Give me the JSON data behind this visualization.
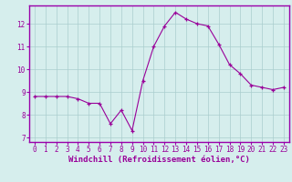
{
  "x": [
    0,
    1,
    2,
    3,
    4,
    5,
    6,
    7,
    8,
    9,
    10,
    11,
    12,
    13,
    14,
    15,
    16,
    17,
    18,
    19,
    20,
    21,
    22,
    23
  ],
  "y": [
    8.8,
    8.8,
    8.8,
    8.8,
    8.7,
    8.5,
    8.5,
    7.6,
    8.2,
    7.3,
    9.5,
    11.0,
    11.9,
    12.5,
    12.2,
    12.0,
    11.9,
    11.1,
    10.2,
    9.8,
    9.3,
    9.2,
    9.1,
    9.2
  ],
  "line_color": "#990099",
  "marker": "+",
  "marker_size": 3,
  "bg_color": "#d6eeed",
  "grid_color": "#aacece",
  "spine_color": "#9900aa",
  "xlabel": "Windchill (Refroidissement éolien,°C)",
  "xlim": [
    -0.5,
    23.5
  ],
  "ylim": [
    6.8,
    12.8
  ],
  "yticks": [
    7,
    8,
    9,
    10,
    11,
    12
  ],
  "xticks": [
    0,
    1,
    2,
    3,
    4,
    5,
    6,
    7,
    8,
    9,
    10,
    11,
    12,
    13,
    14,
    15,
    16,
    17,
    18,
    19,
    20,
    21,
    22,
    23
  ],
  "tick_fontsize": 5.5,
  "xlabel_fontsize": 6.5
}
